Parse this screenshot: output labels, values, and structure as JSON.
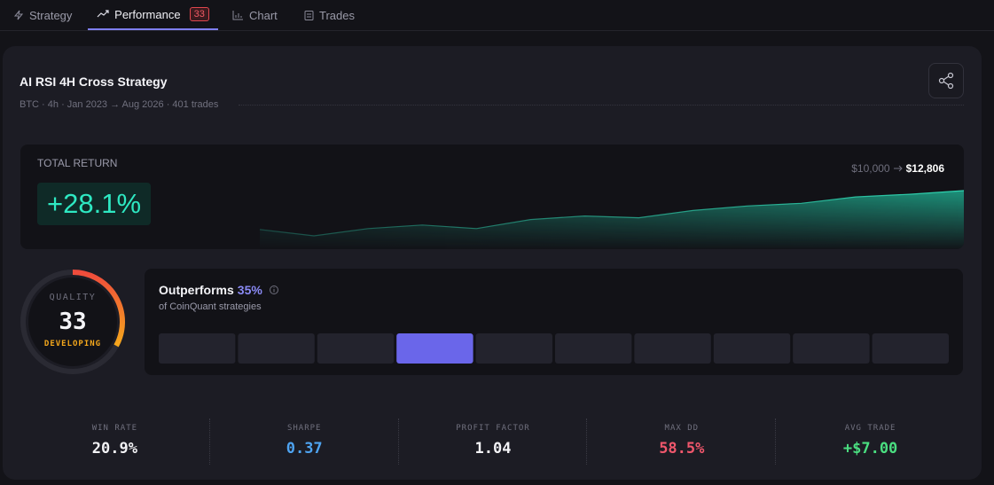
{
  "tabs": [
    {
      "label": "Strategy"
    },
    {
      "label": "Performance",
      "badge": "33"
    },
    {
      "label": "Chart"
    },
    {
      "label": "Trades"
    }
  ],
  "card": {
    "title": "AI RSI 4H Cross Strategy",
    "subtitle": "BTC · 4h · Jan 2023 → Aug 2026 · 401 trades"
  },
  "total_return": {
    "label": "TOTAL RETURN",
    "value": "+28.1%",
    "start": "$10,000",
    "end": "$12,806",
    "equity": [
      10000,
      9543,
      10065,
      10326,
      10065,
      10718,
      10979,
      10849,
      11371,
      11698,
      11894,
      12351,
      12546,
      12806
    ]
  },
  "quality": {
    "label": "QUALITY",
    "score": 33,
    "max": 100,
    "rating": "DEVELOPING"
  },
  "outperforms": {
    "title": "Outperforms",
    "percentile": {
      "value": 35,
      "label": "35%"
    },
    "subtitle": "of CoinQuant strategies",
    "segments": 10
  },
  "metrics": [
    {
      "label": "WIN RATE",
      "value": "20.9%",
      "color": "#f2f2f5"
    },
    {
      "label": "SHARPE",
      "value": "0.37",
      "color": "#4ea3f0"
    },
    {
      "label": "PROFIT FACTOR",
      "value": "1.04",
      "color": "#f2f2f5"
    },
    {
      "label": "MAX DD",
      "value": "58.5%",
      "color": "#f0576c"
    },
    {
      "label": "AVG TRADE",
      "value": "+$7.00",
      "color": "#4ade80"
    }
  ]
}
